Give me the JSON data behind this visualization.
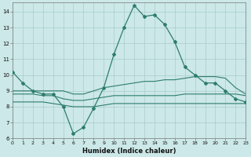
{
  "xlabel": "Humidex (Indice chaleur)",
  "x": [
    0,
    1,
    2,
    3,
    4,
    5,
    6,
    7,
    8,
    9,
    10,
    11,
    12,
    13,
    14,
    15,
    16,
    17,
    18,
    19,
    20,
    21,
    22,
    23
  ],
  "line_main": [
    10.2,
    9.5,
    9.0,
    8.8,
    8.8,
    8.0,
    6.3,
    6.7,
    7.9,
    9.2,
    11.3,
    13.0,
    14.4,
    13.7,
    13.8,
    13.2,
    12.1,
    10.5,
    10.0,
    9.5,
    9.5,
    9.0,
    8.5,
    8.3
  ],
  "line_upper": [
    9.0,
    9.0,
    9.0,
    9.0,
    9.0,
    9.0,
    8.8,
    8.8,
    9.0,
    9.2,
    9.3,
    9.4,
    9.5,
    9.6,
    9.6,
    9.7,
    9.7,
    9.8,
    9.9,
    9.9,
    9.9,
    9.8,
    9.2,
    8.8
  ],
  "line_mid": [
    8.8,
    8.8,
    8.8,
    8.7,
    8.7,
    8.5,
    8.4,
    8.4,
    8.5,
    8.6,
    8.7,
    8.7,
    8.7,
    8.7,
    8.7,
    8.7,
    8.7,
    8.8,
    8.8,
    8.8,
    8.8,
    8.8,
    8.8,
    8.7
  ],
  "line_lower": [
    8.3,
    8.3,
    8.3,
    8.3,
    8.2,
    8.1,
    8.0,
    8.0,
    8.0,
    8.1,
    8.2,
    8.2,
    8.2,
    8.2,
    8.2,
    8.2,
    8.2,
    8.2,
    8.2,
    8.2,
    8.2,
    8.2,
    8.2,
    8.2
  ],
  "color": "#2e7d6e",
  "bg_color": "#cce8e8",
  "grid_color": "#aacccc",
  "ylim": [
    6,
    14.6
  ],
  "yticks": [
    6,
    7,
    8,
    9,
    10,
    11,
    12,
    13,
    14
  ],
  "xlim": [
    0,
    23
  ]
}
